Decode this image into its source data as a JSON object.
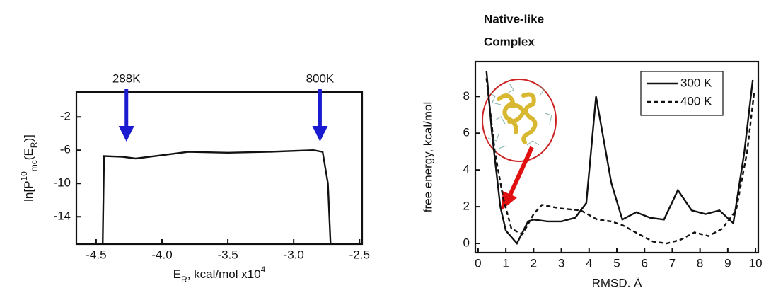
{
  "chart_data": [
    {
      "type": "line",
      "xlabel": [
        {
          "text": "E"
        },
        {
          "text": "R",
          "style": "sub"
        },
        {
          "text": ", kcal/mol x10"
        },
        {
          "text": "4",
          "style": "sup"
        }
      ],
      "ylabel": [
        {
          "text": "ln[P"
        },
        {
          "text": "10",
          "style": "sup"
        },
        {
          "text": "mc",
          "style": "sub"
        },
        {
          "text": "(E"
        },
        {
          "text": "R",
          "style": "sub"
        },
        {
          "text": ")]"
        }
      ],
      "xlim": [
        -4.65,
        -2.48
      ],
      "ylim": [
        -17.3,
        1
      ],
      "xticks": [
        {
          "value": -4.5,
          "label": "-4.5"
        },
        {
          "value": -4,
          "label": "-4.0"
        },
        {
          "value": -3.5,
          "label": "-3.5"
        },
        {
          "value": -3,
          "label": "-3.0"
        },
        {
          "value": -2.5,
          "label": "-2.5"
        }
      ],
      "yticks": [
        -2,
        -6,
        -10,
        -14
      ],
      "series": [
        {
          "color": "#111111",
          "dash": "solid",
          "x": [
            -4.45,
            -4.44,
            -4.3,
            -4.2,
            -4.0,
            -3.8,
            -3.5,
            -3.2,
            -2.85,
            -2.78,
            -2.74,
            -2.72
          ],
          "values": [
            -17.3,
            -6.7,
            -6.8,
            -7.0,
            -6.6,
            -6.2,
            -6.3,
            -6.2,
            -6.0,
            -6.2,
            -10,
            -17.3
          ]
        }
      ],
      "annotations": [
        {
          "text": "288K",
          "x": -4.27,
          "color": "#1a1ad0"
        },
        {
          "text": "800K",
          "x": -2.8,
          "color": "#1a1ad0"
        }
      ]
    },
    {
      "type": "line",
      "xlabel": "RMSD. Å",
      "ylabel": "free energy, kcal/mol",
      "xlim": [
        -0.1,
        10.1
      ],
      "ylim": [
        -0.5,
        9.9
      ],
      "xticks": [
        0,
        1,
        2,
        3,
        4,
        5,
        6,
        7,
        8,
        9,
        10
      ],
      "yticks": [
        0,
        2,
        4,
        6,
        8
      ],
      "legend": "upper right",
      "series": [
        {
          "name": "300 K",
          "color": "#111111",
          "dash": "solid",
          "x": [
            0.3,
            0.5,
            0.8,
            1.0,
            1.4,
            1.8,
            2.0,
            2.5,
            3.0,
            3.5,
            3.9,
            4.25,
            4.8,
            5.2,
            5.7,
            6.2,
            6.7,
            7.2,
            7.7,
            8.2,
            8.7,
            9.2,
            9.6,
            9.9
          ],
          "values": [
            9.4,
            6,
            2,
            0.7,
            0,
            1.2,
            1.3,
            1.2,
            1.2,
            1.4,
            2.2,
            8,
            3.3,
            1.3,
            1.7,
            1.4,
            1.3,
            2.9,
            1.8,
            1.6,
            1.8,
            1.1,
            5,
            8.9
          ]
        },
        {
          "name": "400 K",
          "color": "#111111",
          "dash": "dashed",
          "x": [
            0.3,
            0.6,
            0.9,
            1.2,
            1.6,
            2.0,
            2.3,
            3.0,
            3.7,
            4.3,
            4.8,
            5.2,
            5.8,
            6.3,
            6.8,
            7.3,
            7.8,
            8.3,
            8.8,
            9.3,
            9.7,
            9.95
          ],
          "values": [
            9,
            5,
            2.5,
            0.8,
            0.5,
            1.6,
            2.1,
            1.9,
            1.8,
            1.3,
            1.2,
            1.0,
            0.5,
            0.1,
            0,
            0.2,
            0.6,
            0.4,
            0.8,
            1.8,
            5,
            8.2
          ]
        }
      ],
      "annotation": {
        "lines": [
          "Native-like",
          "Complex"
        ],
        "color": "#b01010"
      }
    }
  ]
}
